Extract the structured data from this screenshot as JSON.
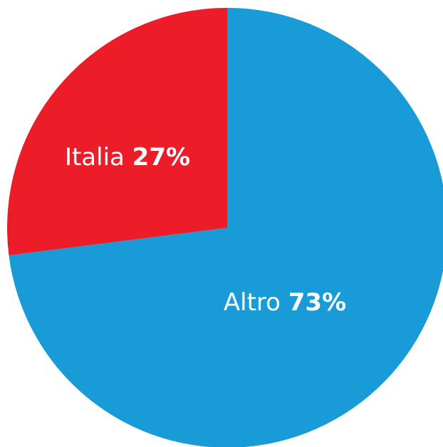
{
  "chart_data": {
    "type": "pie",
    "slices": [
      {
        "label": "Altro",
        "value": 73,
        "display": "73%",
        "color": "#189BD7"
      },
      {
        "label": "Italia",
        "value": 27,
        "display": "27%",
        "color": "#ED1C29"
      }
    ]
  }
}
